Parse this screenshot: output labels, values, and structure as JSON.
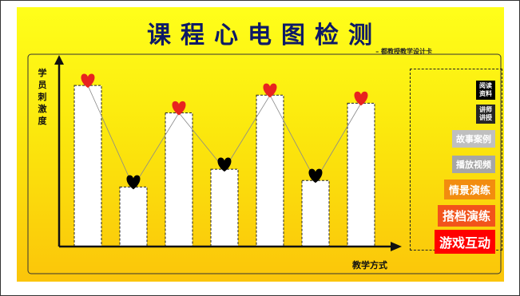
{
  "header": {
    "title": "课程心电图检测",
    "subtitle": "– 都教授教学设计卡"
  },
  "chart_data": {
    "type": "bar",
    "title": "课程心电图检测",
    "ylabel": "学员刺激度",
    "xlabel": "教学方式",
    "values": [
      100,
      37,
      83,
      48,
      94,
      41,
      89
    ],
    "marker_colors": [
      "#e8231f",
      "#000000",
      "#e8231f",
      "#000000",
      "#e8231f",
      "#000000",
      "#e8231f"
    ],
    "ylim": [
      0,
      110
    ]
  },
  "legend": {
    "items": [
      {
        "line1": "阅读",
        "line2": "资料",
        "bg": "#000000"
      },
      {
        "line1": "讲师",
        "line2": "讲授",
        "bg": "#262626"
      },
      {
        "line1": "故事案例",
        "line2": "",
        "bg": "#bfbfbf"
      },
      {
        "line1": "播放视频",
        "line2": "",
        "bg": "#a6a6a6"
      },
      {
        "line1": "情景演练",
        "line2": "",
        "bg": "#f28c0f"
      },
      {
        "line1": "搭档演练",
        "line2": "",
        "bg": "#f2541b"
      },
      {
        "line1": "游戏互动",
        "line2": "",
        "bg": "#ff0000"
      }
    ]
  },
  "colors": {
    "title": "#0d1a66",
    "heart_red": "#e8231f",
    "heart_black": "#000000",
    "bar_fill": "#ffffff"
  }
}
